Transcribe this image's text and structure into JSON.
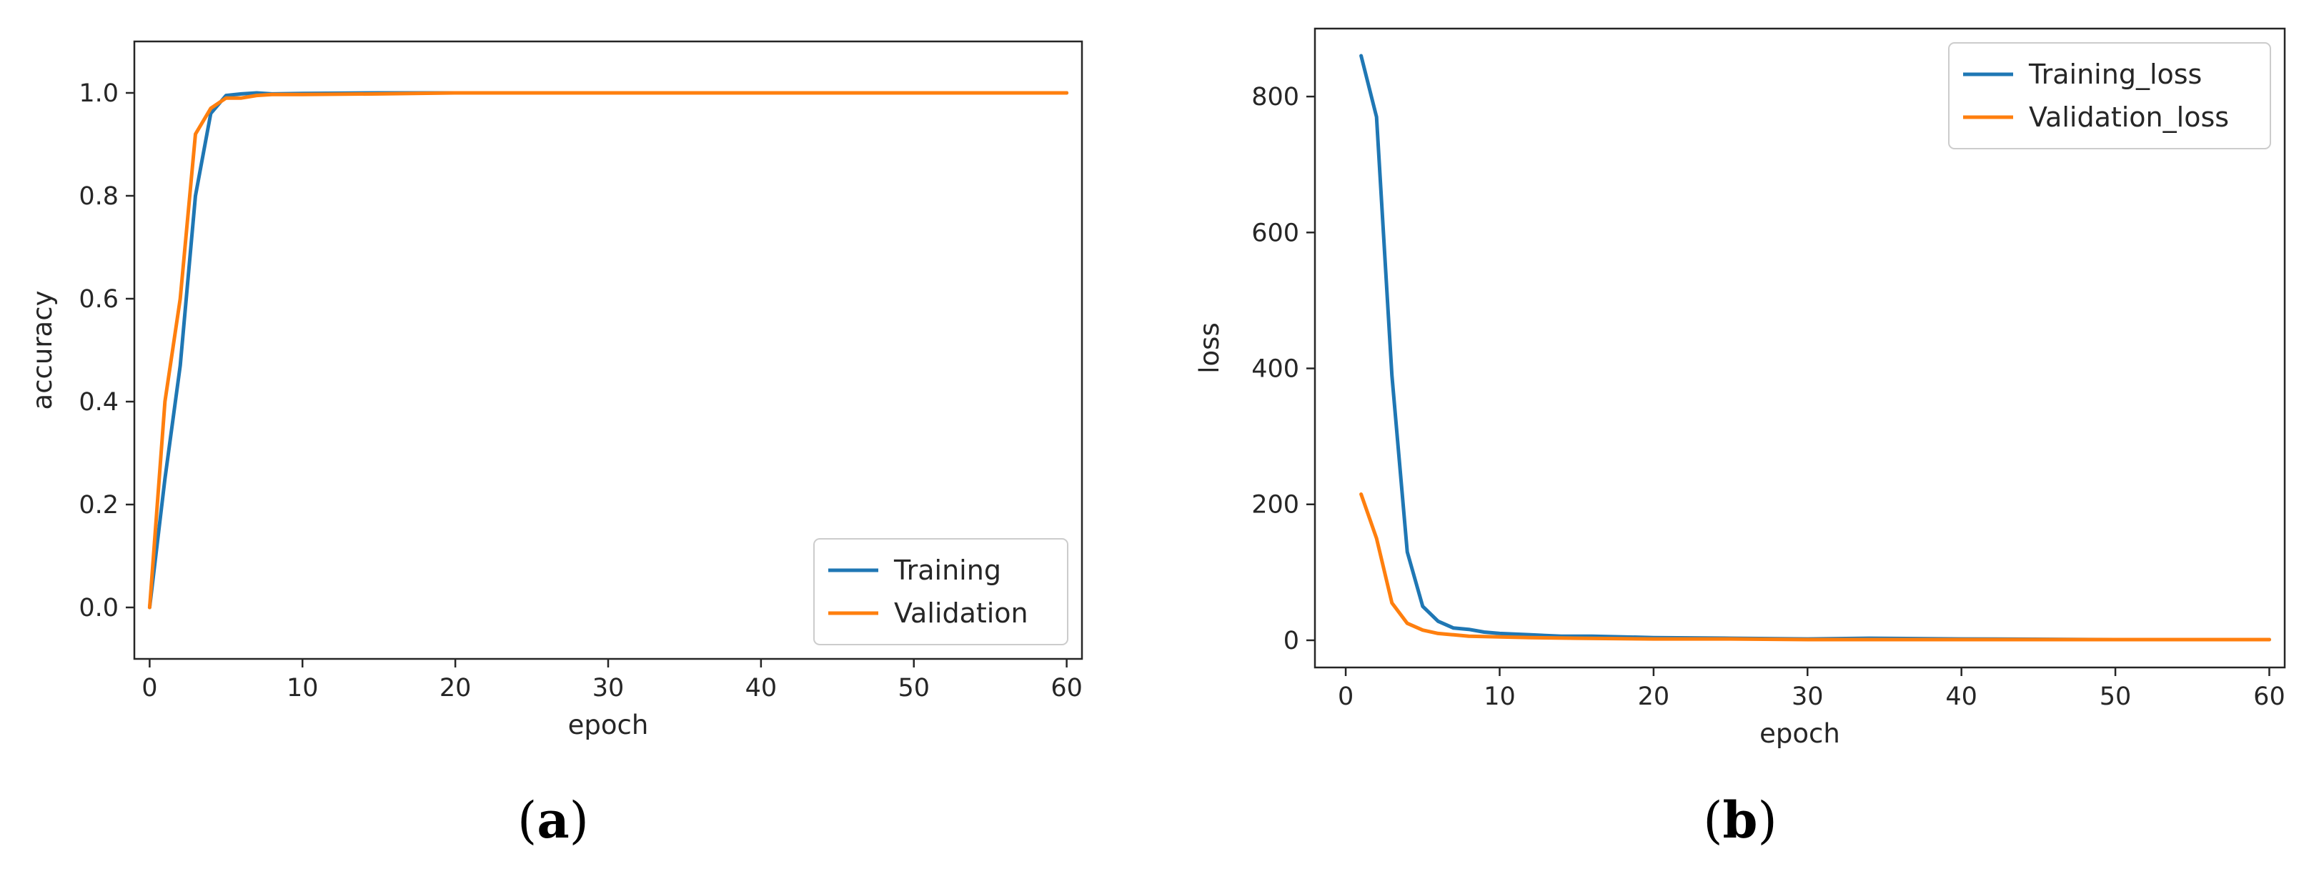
{
  "captions": {
    "a": {
      "open": "(",
      "letter": "a",
      "close": ")"
    },
    "b": {
      "open": "(",
      "letter": "b",
      "close": ")"
    }
  },
  "colors": {
    "training": "#1f77b4",
    "validation": "#ff7f0e",
    "axis": "#262626"
  },
  "chart_data": [
    {
      "id": "a",
      "type": "line",
      "title": "",
      "xlabel": "epoch",
      "ylabel": "accuracy",
      "xlim": [
        -1,
        61
      ],
      "ylim": [
        -0.1,
        1.1
      ],
      "xticks": [
        0,
        10,
        20,
        30,
        40,
        50,
        60
      ],
      "yticks": [
        0.0,
        0.2,
        0.4,
        0.6,
        0.8,
        1.0
      ],
      "ytick_labels": [
        "0.0",
        "0.2",
        "0.4",
        "0.6",
        "0.8",
        "1.0"
      ],
      "grid": false,
      "legend": "lower-right",
      "series": [
        {
          "name": "Training",
          "color": "#1f77b4",
          "x": [
            0,
            1,
            2,
            3,
            4,
            5,
            6,
            7,
            8,
            10,
            15,
            20,
            25,
            30,
            40,
            50,
            60
          ],
          "y": [
            0.0,
            0.25,
            0.47,
            0.8,
            0.96,
            0.995,
            0.998,
            1.0,
            0.998,
            0.999,
            1.0,
            1.0,
            1.0,
            1.0,
            1.0,
            1.0,
            1.0
          ]
        },
        {
          "name": "Validation",
          "color": "#ff7f0e",
          "x": [
            0,
            1,
            2,
            3,
            4,
            5,
            6,
            7,
            8,
            10,
            15,
            20,
            25,
            30,
            40,
            50,
            60
          ],
          "y": [
            0.0,
            0.4,
            0.6,
            0.92,
            0.97,
            0.99,
            0.99,
            0.995,
            0.997,
            0.997,
            0.998,
            1.0,
            1.0,
            1.0,
            1.0,
            1.0,
            1.0
          ]
        }
      ]
    },
    {
      "id": "b",
      "type": "line",
      "title": "",
      "xlabel": "epoch",
      "ylabel": "loss",
      "xlim": [
        -2,
        61
      ],
      "ylim": [
        -40,
        900
      ],
      "xticks": [
        0,
        10,
        20,
        30,
        40,
        50,
        60
      ],
      "yticks": [
        0,
        200,
        400,
        600,
        800
      ],
      "ytick_labels": [
        "0",
        "200",
        "400",
        "600",
        "800"
      ],
      "grid": false,
      "legend": "upper-right",
      "series": [
        {
          "name": "Training_loss",
          "color": "#1f77b4",
          "x": [
            1,
            2,
            3,
            4,
            5,
            6,
            7,
            8,
            9,
            10,
            12,
            14,
            16,
            18,
            20,
            25,
            30,
            34,
            40,
            50,
            60
          ],
          "y": [
            860,
            770,
            390,
            130,
            50,
            28,
            18,
            16,
            12,
            10,
            8,
            6,
            6,
            5,
            4,
            3,
            2,
            3,
            2,
            1,
            1
          ]
        },
        {
          "name": "Validation_loss",
          "color": "#ff7f0e",
          "x": [
            1,
            2,
            3,
            4,
            5,
            6,
            7,
            8,
            10,
            12,
            15,
            20,
            25,
            30,
            40,
            50,
            60
          ],
          "y": [
            215,
            150,
            55,
            25,
            15,
            10,
            8,
            6,
            5,
            4,
            3,
            2,
            2,
            1,
            1,
            1,
            1
          ]
        }
      ]
    }
  ]
}
